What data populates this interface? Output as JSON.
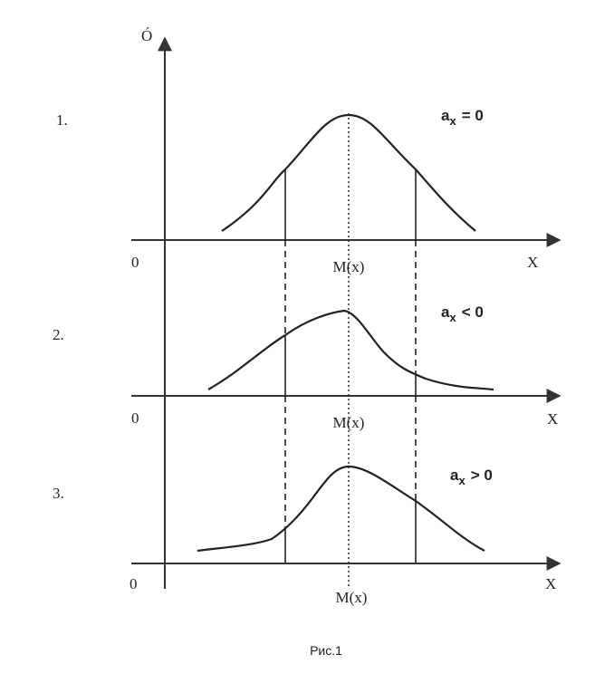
{
  "y_axis_label": "Ó",
  "panels": [
    {
      "number": "1.",
      "origin": "0",
      "mean_label": "M(x)",
      "x_axis_label": "X",
      "asymmetry": {
        "symbol": "a",
        "subscript": "x",
        "relation": "= 0"
      }
    },
    {
      "number": "2.",
      "origin": "0",
      "mean_label": "M(x)",
      "x_axis_label": "X",
      "asymmetry": {
        "symbol": "a",
        "subscript": "x",
        "relation": "< 0"
      }
    },
    {
      "number": "3.",
      "origin": "0",
      "mean_label": "M(x)",
      "x_axis_label": "X",
      "asymmetry": {
        "symbol": "a",
        "subscript": "x",
        "relation": "> 0"
      }
    }
  ],
  "caption": "Рис.1"
}
